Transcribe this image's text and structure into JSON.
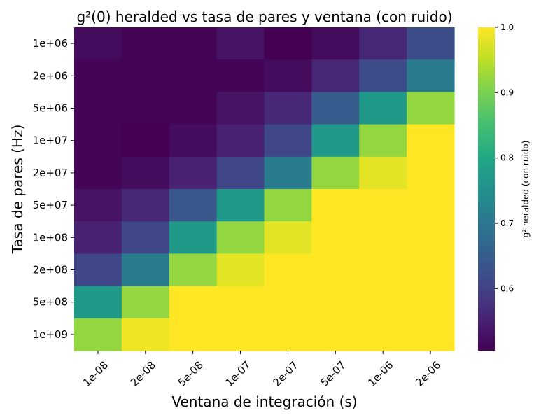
{
  "chart_data": {
    "type": "heatmap",
    "title": "g²(0) heralded vs tasa de pares y ventana (con ruido)",
    "xlabel": "Ventana de integración (s)",
    "ylabel": "Tasa de pares (Hz)",
    "x_categories": [
      "1e-08",
      "2e-08",
      "5e-08",
      "1e-07",
      "2e-07",
      "5e-07",
      "1e-06",
      "2e-06"
    ],
    "y_categories": [
      "1e+06",
      "2e+06",
      "5e+06",
      "1e+07",
      "2e+07",
      "5e+07",
      "1e+08",
      "2e+08",
      "5e+08",
      "1e+09"
    ],
    "values": [
      [
        0.52,
        0.51,
        0.51,
        0.53,
        0.5,
        0.52,
        0.56,
        0.62
      ],
      [
        0.51,
        0.51,
        0.51,
        0.51,
        0.52,
        0.56,
        0.62,
        0.71
      ],
      [
        0.51,
        0.51,
        0.51,
        0.53,
        0.56,
        0.65,
        0.77,
        0.92
      ],
      [
        0.51,
        0.5,
        0.52,
        0.55,
        0.61,
        0.77,
        0.92,
        1.0
      ],
      [
        0.51,
        0.52,
        0.55,
        0.61,
        0.71,
        0.92,
        0.98,
        1.0
      ],
      [
        0.53,
        0.56,
        0.64,
        0.77,
        0.92,
        1.0,
        1.0,
        1.0
      ],
      [
        0.55,
        0.61,
        0.77,
        0.92,
        0.98,
        1.0,
        1.0,
        1.0
      ],
      [
        0.61,
        0.71,
        0.92,
        0.98,
        1.0,
        1.0,
        1.0,
        1.0
      ],
      [
        0.77,
        0.92,
        1.0,
        1.0,
        1.0,
        1.0,
        1.0,
        1.0
      ],
      [
        0.92,
        0.99,
        1.0,
        1.0,
        1.0,
        1.0,
        1.0,
        1.0
      ]
    ],
    "colormap": "viridis",
    "colorbar": {
      "label": "g² heralded (con ruido)",
      "range": [
        0.505,
        1.0
      ],
      "ticks": [
        0.6,
        0.7,
        0.8,
        0.9,
        1.0
      ],
      "tick_labels": [
        "0.6",
        "0.7",
        "0.8",
        "0.9",
        "1.0"
      ]
    }
  }
}
